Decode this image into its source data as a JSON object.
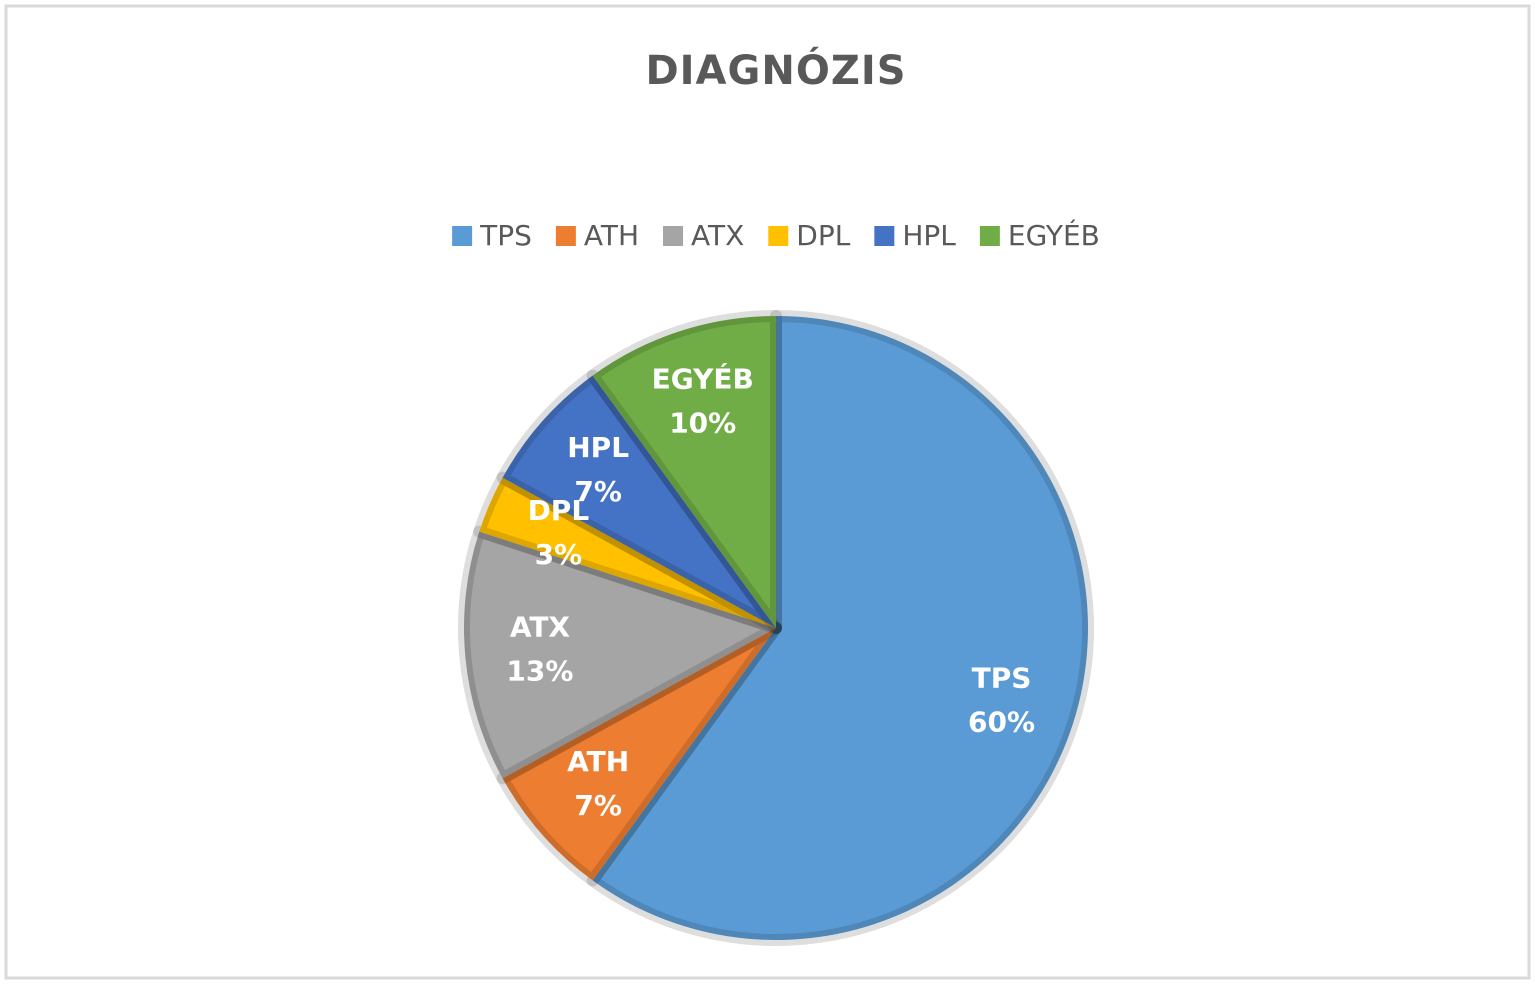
{
  "chart_data": {
    "type": "pie",
    "title": "DIAGNÓZIS",
    "categories": [
      "TPS",
      "ATH",
      "ATX",
      "DPL",
      "HPL",
      "EGYÉB"
    ],
    "values": [
      60,
      7,
      13,
      3,
      7,
      10
    ],
    "value_labels": [
      "60%",
      "7%",
      "13%",
      "3%",
      "7%",
      "10%"
    ],
    "colors": [
      "#5b9bd5",
      "#ed7d31",
      "#a5a5a5",
      "#ffc000",
      "#4472c4",
      "#70ad47"
    ],
    "legend": "top"
  }
}
